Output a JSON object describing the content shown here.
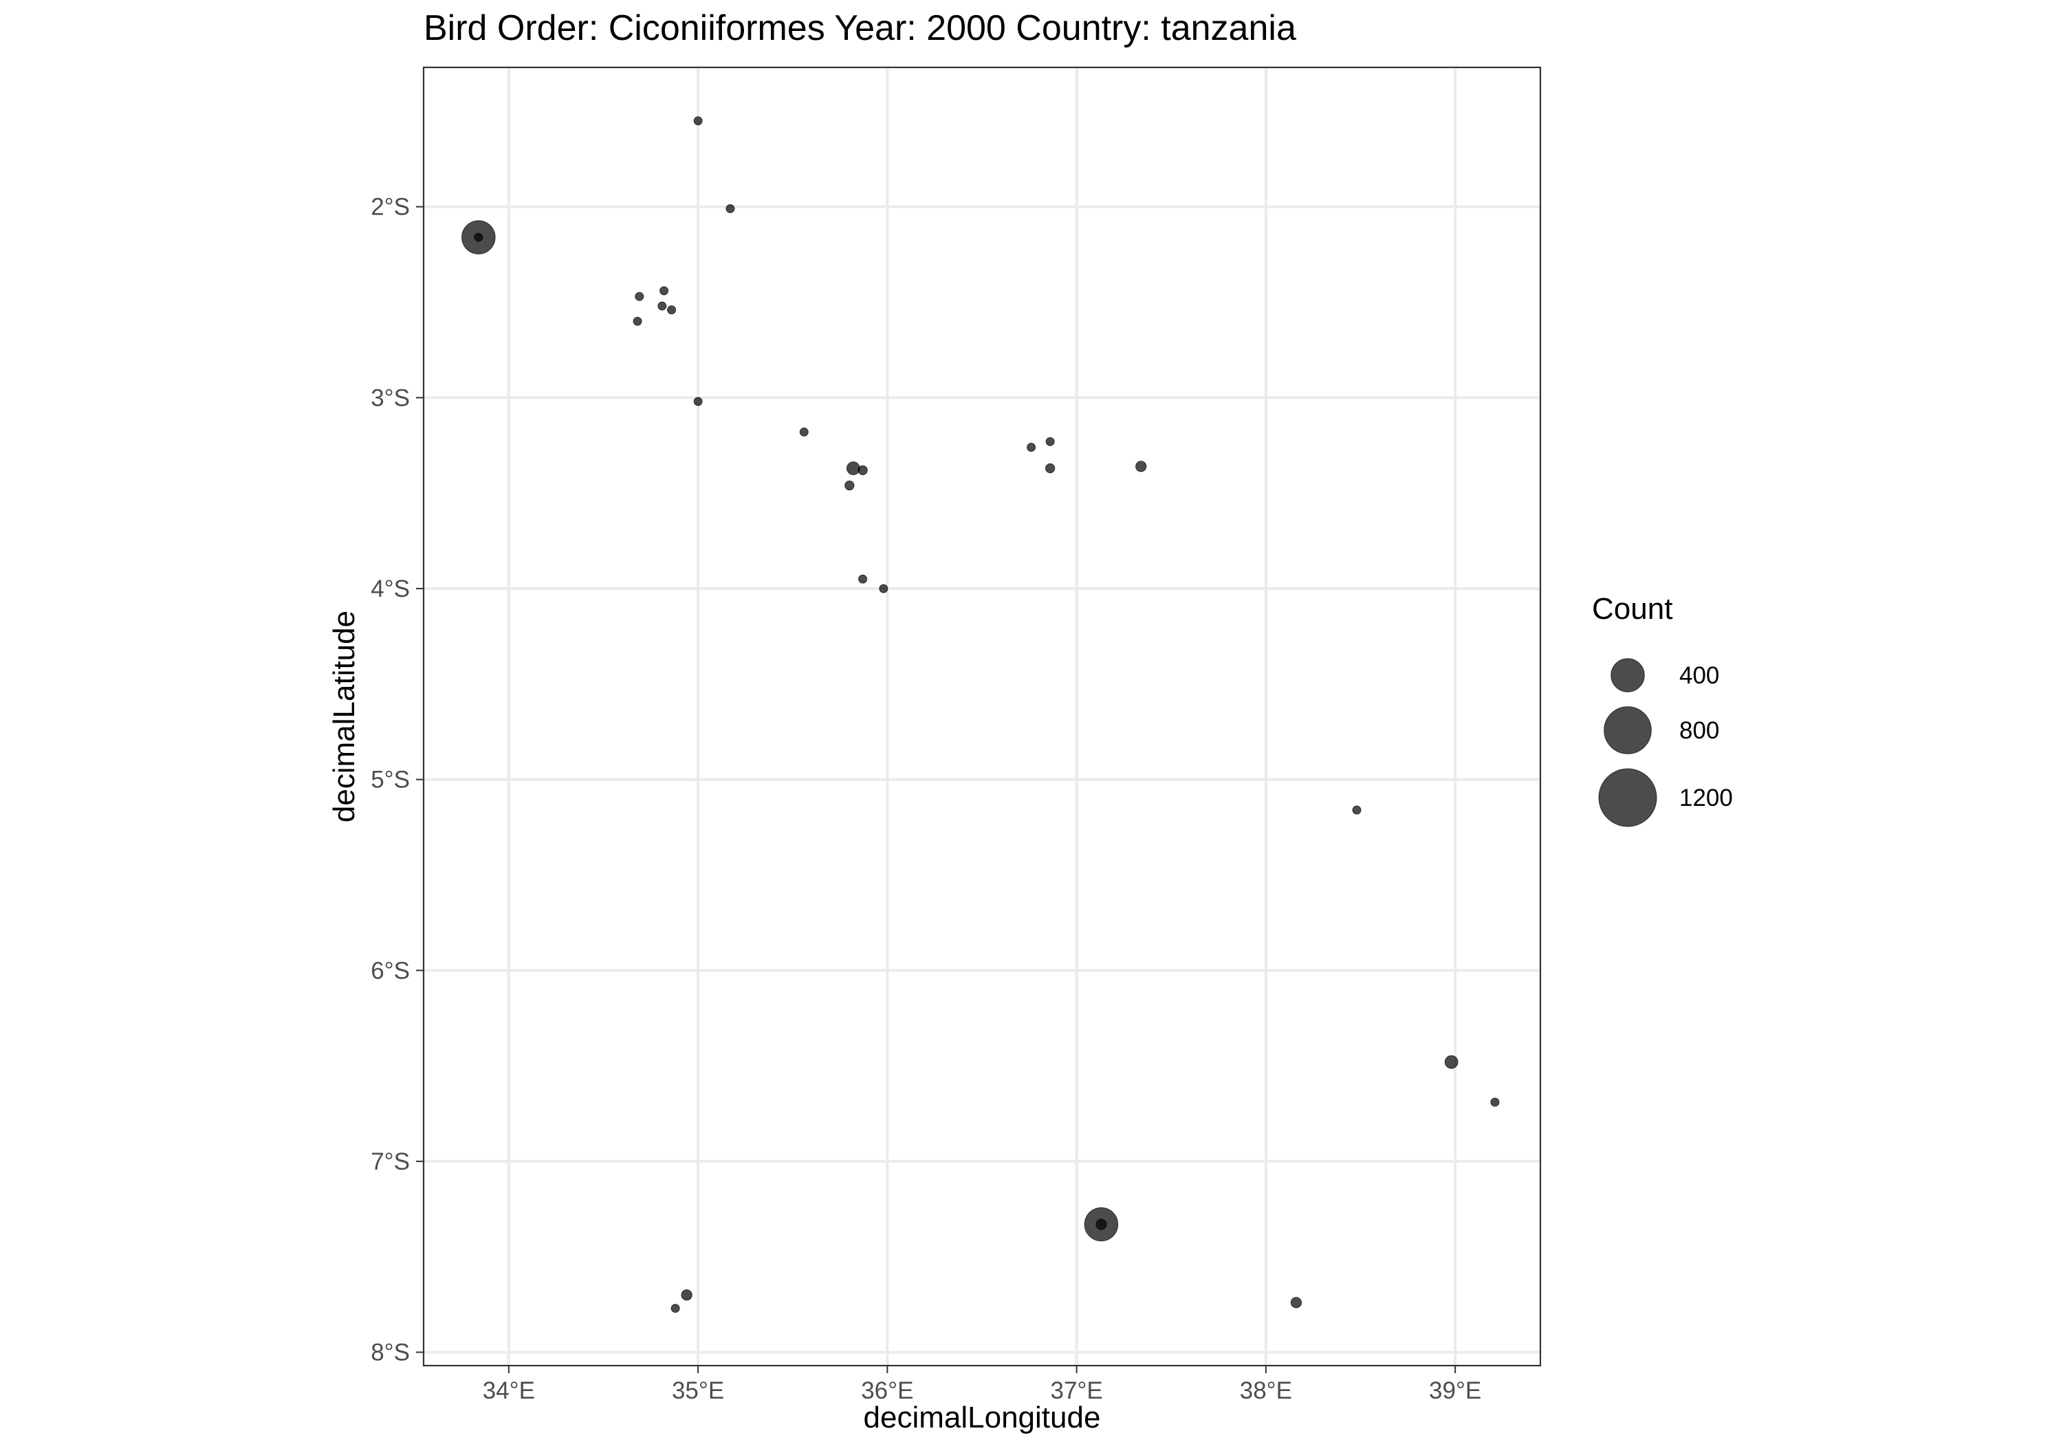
{
  "chart_data": {
    "type": "scatter",
    "title": "Bird Order: Ciconiiformes Year: 2000 Country: tanzania",
    "xlabel": "decimalLongitude",
    "ylabel": "decimalLatitude",
    "xlim": [
      33.55,
      39.45
    ],
    "ylim": [
      -8.07,
      -1.27
    ],
    "x_ticks": [
      34,
      35,
      36,
      37,
      38,
      39
    ],
    "x_tick_labels": [
      "34°E",
      "35°E",
      "36°E",
      "37°E",
      "38°E",
      "39°E"
    ],
    "y_ticks": [
      -2,
      -3,
      -4,
      -5,
      -6,
      -7,
      -8
    ],
    "y_tick_labels": [
      "2°S",
      "3°S",
      "4°S",
      "5°S",
      "6°S",
      "7°S",
      "8°S"
    ],
    "grid": true,
    "point_color": "#000000",
    "point_opacity": 0.7,
    "size_legend": {
      "title": "Count",
      "position": "right",
      "entries": [
        {
          "label": "400",
          "value": 400
        },
        {
          "label": "800",
          "value": 800
        },
        {
          "label": "1200",
          "value": 1200
        }
      ]
    },
    "points": [
      {
        "lon": 35.0,
        "lat": -1.55,
        "count": 20
      },
      {
        "lon": 35.17,
        "lat": -2.01,
        "count": 10
      },
      {
        "lon": 33.84,
        "lat": -2.16,
        "count": 400
      },
      {
        "lon": 33.84,
        "lat": -2.16,
        "count": 5
      },
      {
        "lon": 34.69,
        "lat": -2.47,
        "count": 10
      },
      {
        "lon": 34.82,
        "lat": -2.44,
        "count": 10
      },
      {
        "lon": 34.81,
        "lat": -2.52,
        "count": 10
      },
      {
        "lon": 34.86,
        "lat": -2.54,
        "count": 20
      },
      {
        "lon": 34.68,
        "lat": -2.6,
        "count": 10
      },
      {
        "lon": 35.0,
        "lat": -3.02,
        "count": 20
      },
      {
        "lon": 35.56,
        "lat": -3.18,
        "count": 20
      },
      {
        "lon": 35.82,
        "lat": -3.37,
        "count": 60
      },
      {
        "lon": 35.87,
        "lat": -3.38,
        "count": 30
      },
      {
        "lon": 35.8,
        "lat": -3.46,
        "count": 30
      },
      {
        "lon": 36.76,
        "lat": -3.26,
        "count": 15
      },
      {
        "lon": 36.86,
        "lat": -3.23,
        "count": 10
      },
      {
        "lon": 36.86,
        "lat": -3.37,
        "count": 30
      },
      {
        "lon": 37.34,
        "lat": -3.36,
        "count": 40
      },
      {
        "lon": 35.87,
        "lat": -3.95,
        "count": 10
      },
      {
        "lon": 35.98,
        "lat": -4.0,
        "count": 20
      },
      {
        "lon": 38.48,
        "lat": -5.16,
        "count": 10
      },
      {
        "lon": 38.98,
        "lat": -6.48,
        "count": 60
      },
      {
        "lon": 39.21,
        "lat": -6.69,
        "count": 10
      },
      {
        "lon": 37.13,
        "lat": -7.33,
        "count": 400
      },
      {
        "lon": 37.13,
        "lat": -7.33,
        "count": 40
      },
      {
        "lon": 38.16,
        "lat": -7.74,
        "count": 40
      },
      {
        "lon": 34.94,
        "lat": -7.7,
        "count": 40
      },
      {
        "lon": 34.88,
        "lat": -7.77,
        "count": 10
      }
    ]
  }
}
